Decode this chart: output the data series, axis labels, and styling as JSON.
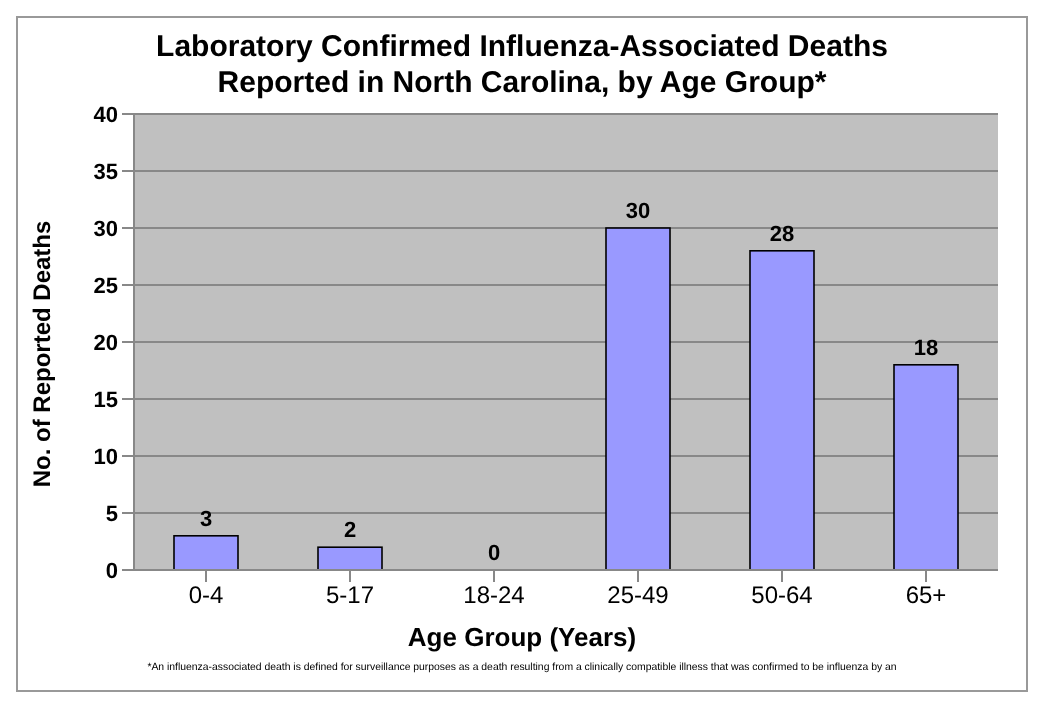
{
  "chart_data": {
    "type": "bar",
    "title": "Laboratory Confirmed Influenza-Associated Deaths\nReported in North Carolina, by Age Group*",
    "xlabel": "Age Group (Years)",
    "ylabel": "No. of Reported Deaths",
    "categories": [
      "0-4",
      "5-17",
      "18-24",
      "25-49",
      "50-64",
      "65+"
    ],
    "values": [
      3,
      2,
      0,
      30,
      28,
      18
    ],
    "color": "#9999ff",
    "ylim": [
      0,
      40
    ],
    "yticks": [
      0,
      5,
      10,
      15,
      20,
      25,
      30,
      35,
      40
    ],
    "grid": "y",
    "data_labels": true,
    "annotations": [
      "*An influenza-associated death is defined for surveillance purposes as a death resulting from a clinically compatible illness that was confirmed to be influenza by an"
    ]
  }
}
